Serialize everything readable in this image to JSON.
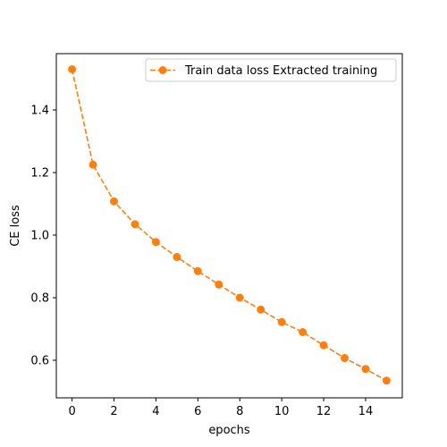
{
  "chart_data": {
    "type": "line",
    "title": "",
    "xlabel": "epochs",
    "ylabel": "CE loss",
    "xlim": [
      -0.75,
      15.75
    ],
    "ylim": [
      0.48,
      1.58
    ],
    "xticks": [
      0,
      2,
      4,
      6,
      8,
      10,
      12,
      14
    ],
    "xtick_labels": [
      "0",
      "2",
      "4",
      "6",
      "8",
      "10",
      "12",
      "14"
    ],
    "yticks": [
      0.6,
      0.8,
      1.0,
      1.2,
      1.4
    ],
    "ytick_labels": [
      "0.6",
      "0.8",
      "1.0",
      "1.2",
      "1.4"
    ],
    "grid": false,
    "legend_position": "top-right",
    "series": [
      {
        "name": "Train data loss Extracted training",
        "color": "#ff7f0e",
        "line_style": "dashed",
        "marker": "circle",
        "x": [
          0,
          1,
          2,
          3,
          4,
          5,
          6,
          7,
          8,
          9,
          10,
          11,
          12,
          13,
          14,
          15
        ],
        "y": [
          1.53,
          1.225,
          1.108,
          1.035,
          0.978,
          0.93,
          0.885,
          0.842,
          0.8,
          0.762,
          0.722,
          0.69,
          0.648,
          0.607,
          0.572,
          0.535
        ]
      }
    ]
  }
}
